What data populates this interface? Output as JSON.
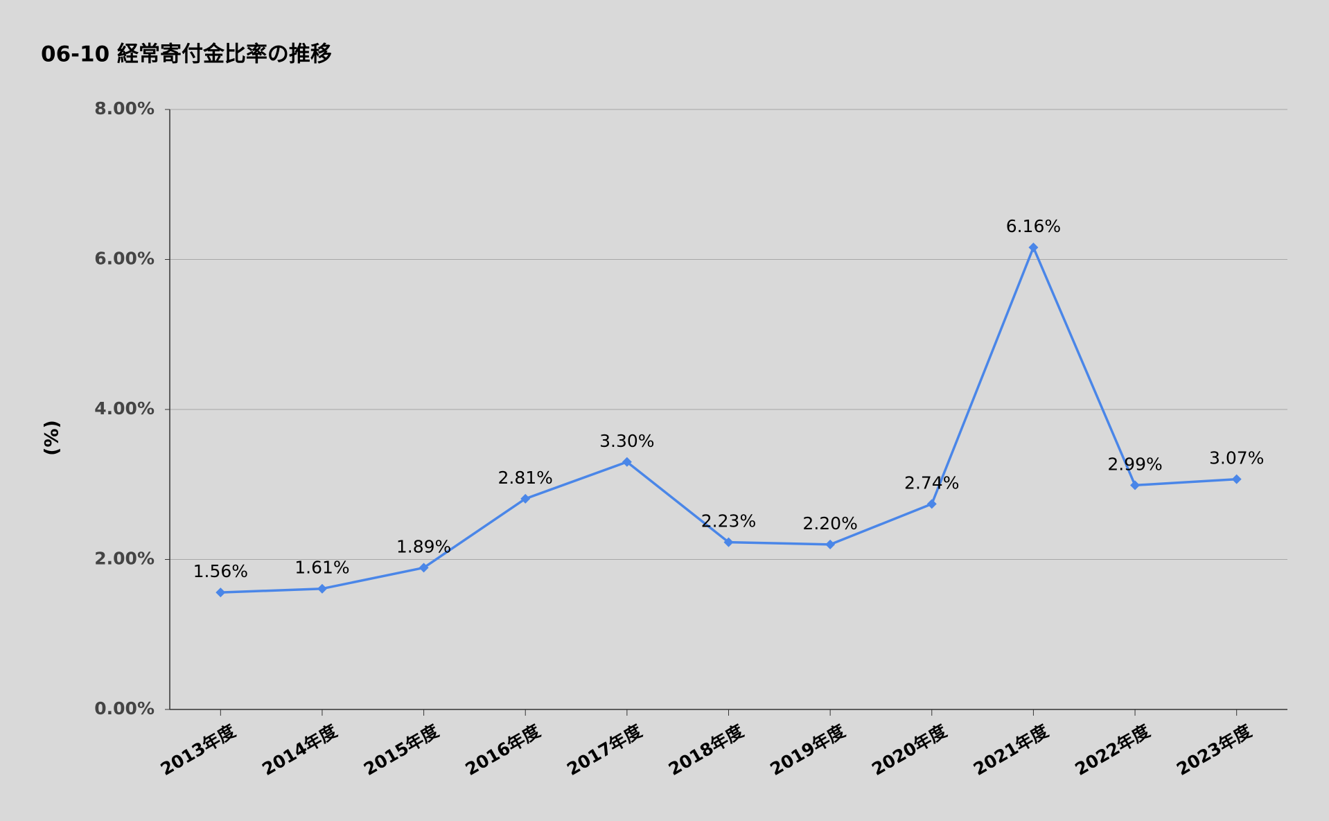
{
  "chart_data": {
    "type": "line",
    "title": "06-10 経常寄付金比率の推移",
    "y_label": "(%)",
    "categories": [
      "2013年度",
      "2014年度",
      "2015年度",
      "2016年度",
      "2017年度",
      "2018年度",
      "2019年度",
      "2020年度",
      "2021年度",
      "2022年度",
      "2023年度"
    ],
    "series": [
      {
        "color": "#4a86e8",
        "values": [
          1.56,
          1.61,
          1.89,
          2.81,
          3.3,
          2.23,
          2.2,
          2.74,
          6.16,
          2.99,
          3.07
        ],
        "value_labels": [
          "1.56%",
          "1.61%",
          "1.89%",
          "2.81%",
          "3.30%",
          "2.23%",
          "2.20%",
          "2.74%",
          "6.16%",
          "2.99%",
          "3.07%"
        ]
      }
    ],
    "ylim": [
      0,
      8
    ],
    "yticks": [
      {
        "value": 0,
        "label": "0.00%"
      },
      {
        "value": 2,
        "label": "2.00%"
      },
      {
        "value": 4,
        "label": "4.00%"
      },
      {
        "value": 6,
        "label": "6.00%"
      },
      {
        "value": 8,
        "label": "8.00%"
      }
    ],
    "grid": true
  }
}
